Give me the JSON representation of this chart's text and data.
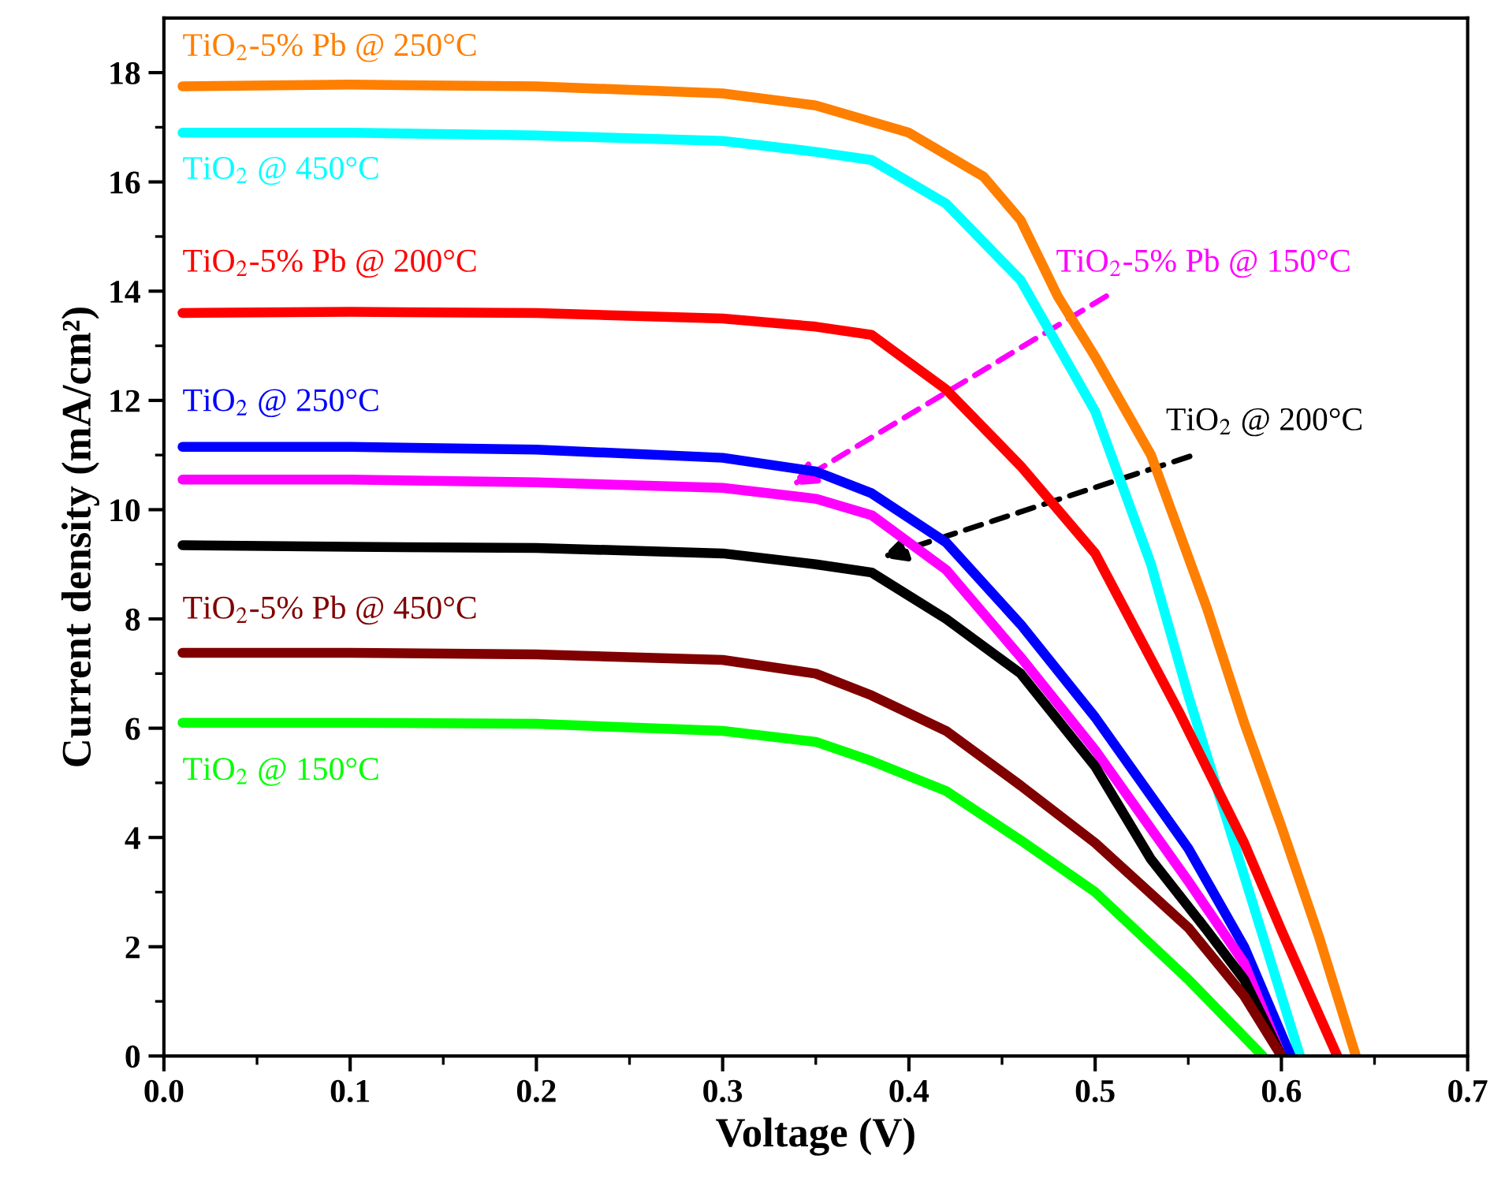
{
  "chart_data": {
    "type": "line",
    "xlabel": "Voltage (V)",
    "ylabel": "Current density (mA/cm²)",
    "xlim": [
      0,
      0.7
    ],
    "ylim": [
      0,
      19
    ],
    "xticks": [
      {
        "value": 0,
        "label": "0.0"
      },
      {
        "value": 0.05,
        "label": null
      },
      {
        "value": 0.1,
        "label": "0.1"
      },
      {
        "value": 0.15,
        "label": null
      },
      {
        "value": 0.2,
        "label": "0.2"
      },
      {
        "value": 0.25,
        "label": null
      },
      {
        "value": 0.3,
        "label": "0.3"
      },
      {
        "value": 0.35,
        "label": null
      },
      {
        "value": 0.4,
        "label": "0.4"
      },
      {
        "value": 0.45,
        "label": null
      },
      {
        "value": 0.5,
        "label": "0.5"
      },
      {
        "value": 0.55,
        "label": null
      },
      {
        "value": 0.6,
        "label": "0.6"
      },
      {
        "value": 0.65,
        "label": null
      },
      {
        "value": 0.7,
        "label": "0.7"
      }
    ],
    "yticks": [
      0,
      {
        "value": 1,
        "label": null
      },
      2,
      {
        "value": 3,
        "label": null
      },
      4,
      {
        "value": 5,
        "label": null
      },
      6,
      {
        "value": 7,
        "label": null
      },
      8,
      {
        "value": 9,
        "label": null
      },
      10,
      {
        "value": 11,
        "label": null
      },
      12,
      {
        "value": 13,
        "label": null
      },
      14,
      {
        "value": 15,
        "label": null
      },
      16,
      {
        "value": 17,
        "label": null
      },
      18
    ],
    "grid": false,
    "legend": false,
    "marker": "none",
    "line_style": "solid",
    "series": [
      {
        "name": "TiO$_{2}$-5% Pb @ 250°C",
        "color": "#ff7f00",
        "x": [
          0.01,
          0.1,
          0.2,
          0.3,
          0.35,
          0.4,
          0.44,
          0.46,
          0.48,
          0.5,
          0.53,
          0.56,
          0.58,
          0.6,
          0.62,
          0.64
        ],
        "values": [
          17.75,
          17.78,
          17.75,
          17.62,
          17.4,
          16.9,
          16.1,
          15.3,
          13.9,
          12.8,
          11.0,
          8.2,
          6.1,
          4.2,
          2.2,
          0
        ]
      },
      {
        "name": "TiO$_{2}$ @ 450°C",
        "color": "#00ffff",
        "x": [
          0.01,
          0.1,
          0.2,
          0.3,
          0.35,
          0.38,
          0.42,
          0.46,
          0.5,
          0.53,
          0.55,
          0.57,
          0.59,
          0.61
        ],
        "values": [
          16.9,
          16.9,
          16.85,
          16.75,
          16.55,
          16.4,
          15.6,
          14.2,
          11.8,
          9.0,
          6.6,
          4.4,
          2.2,
          0
        ]
      },
      {
        "name": "TiO$_{2}$-5% Pb @ 200°C",
        "color": "#ff0000",
        "x": [
          0.01,
          0.1,
          0.2,
          0.3,
          0.35,
          0.38,
          0.42,
          0.46,
          0.5,
          0.545,
          0.58,
          0.6,
          0.63
        ],
        "values": [
          13.6,
          13.62,
          13.6,
          13.5,
          13.35,
          13.2,
          12.2,
          10.8,
          9.2,
          6.3,
          3.9,
          2.3,
          0
        ]
      },
      {
        "name": "TiO$_{2}$ @ 250°C",
        "color": "#0000ff",
        "x": [
          0.01,
          0.1,
          0.2,
          0.3,
          0.35,
          0.38,
          0.42,
          0.46,
          0.5,
          0.55,
          0.58,
          0.605
        ],
        "values": [
          11.15,
          11.15,
          11.1,
          10.95,
          10.7,
          10.3,
          9.4,
          7.9,
          6.2,
          3.8,
          2.0,
          0
        ]
      },
      {
        "name": "TiO$_{2}$-5% Pb @ 150°C",
        "color": "#ff00ff",
        "x": [
          0.01,
          0.1,
          0.2,
          0.3,
          0.35,
          0.38,
          0.42,
          0.46,
          0.5,
          0.55,
          0.58,
          0.6
        ],
        "values": [
          10.55,
          10.55,
          10.5,
          10.4,
          10.2,
          9.9,
          8.9,
          7.3,
          5.6,
          3.2,
          1.7,
          0
        ]
      },
      {
        "name": "TiO$_{2}$ @ 200°C",
        "color": "#000000",
        "x": [
          0.01,
          0.1,
          0.2,
          0.3,
          0.35,
          0.38,
          0.42,
          0.46,
          0.5,
          0.53,
          0.56,
          0.58,
          0.6
        ],
        "values": [
          9.35,
          9.32,
          9.3,
          9.2,
          9.0,
          8.85,
          8.0,
          7.0,
          5.3,
          3.6,
          2.3,
          1.4,
          0
        ]
      },
      {
        "name": "TiO$_{2}$-5% Pb @ 450°C",
        "color": "#800000",
        "x": [
          0.01,
          0.1,
          0.2,
          0.3,
          0.35,
          0.38,
          0.42,
          0.46,
          0.5,
          0.55,
          0.58,
          0.6
        ],
        "values": [
          7.38,
          7.38,
          7.35,
          7.25,
          7.0,
          6.6,
          5.95,
          4.95,
          3.9,
          2.35,
          1.1,
          0
        ]
      },
      {
        "name": "TiO$_{2}$ @ 150°C",
        "color": "#00ff00",
        "x": [
          0.01,
          0.1,
          0.2,
          0.3,
          0.35,
          0.38,
          0.42,
          0.46,
          0.5,
          0.55,
          0.59
        ],
        "values": [
          6.1,
          6.1,
          6.08,
          5.95,
          5.75,
          5.4,
          4.85,
          3.95,
          3.0,
          1.4,
          0
        ]
      }
    ]
  }
}
